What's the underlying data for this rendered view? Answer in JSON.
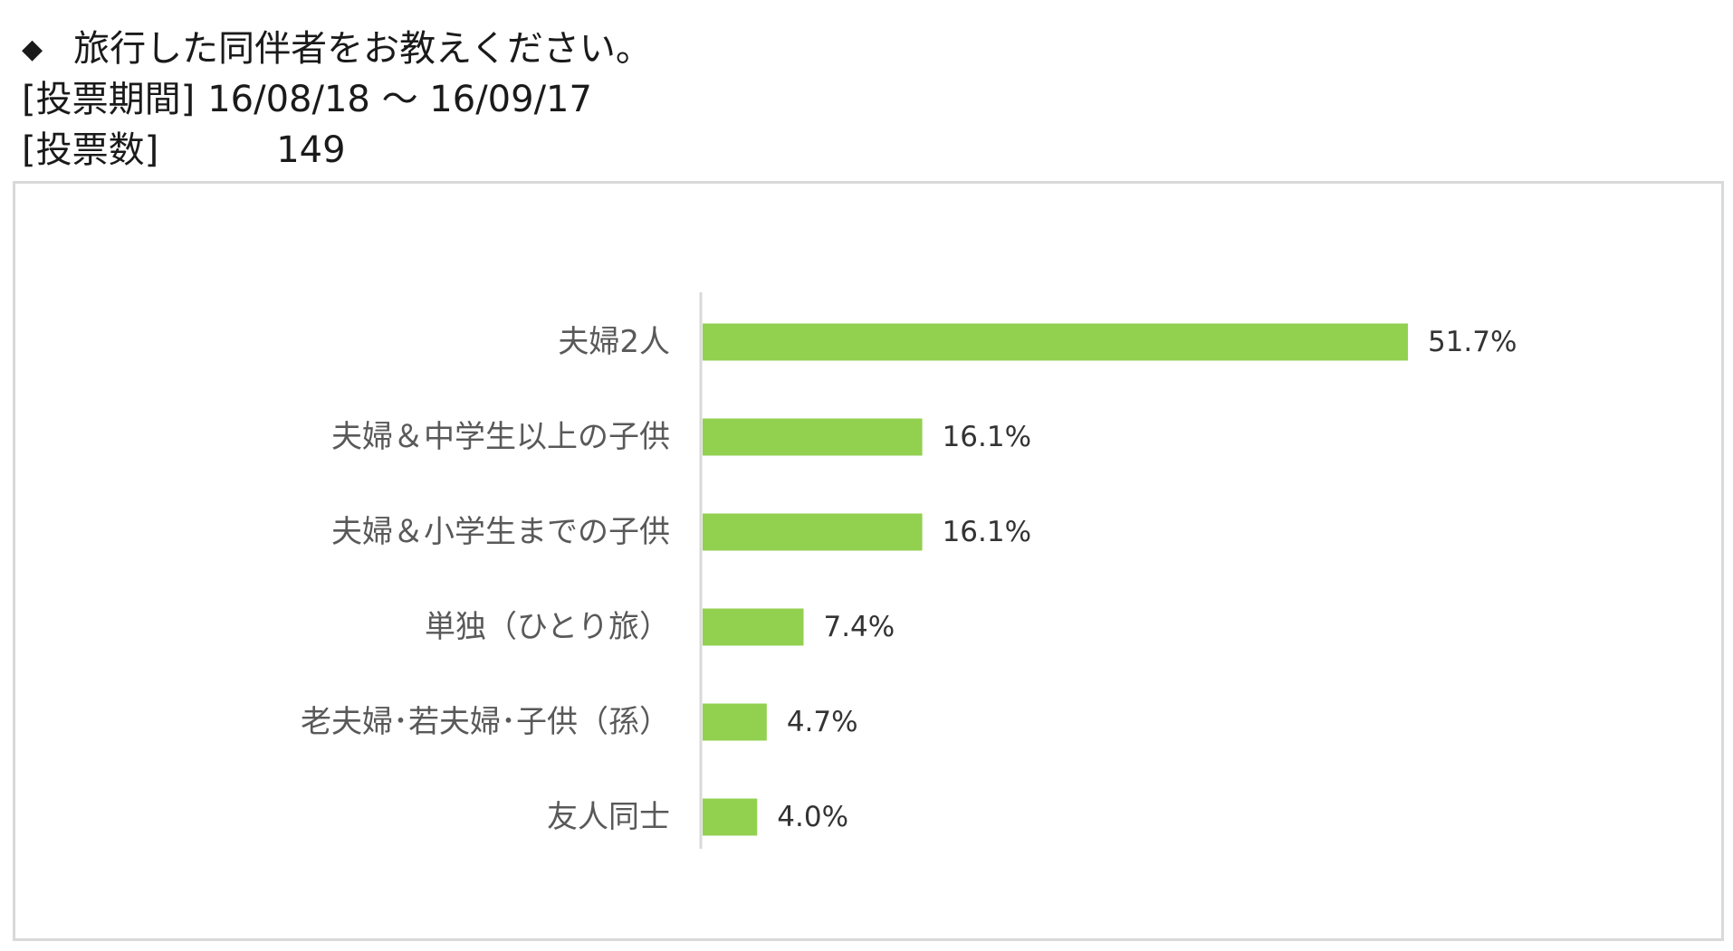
{
  "header": {
    "bullet": "◆",
    "question": "旅行した同伴者をお教えください。",
    "period_label": "[投票期間]",
    "period_value": "16/08/18 ～ 16/09/17",
    "votes_label": "[投票数]",
    "votes_value": "149"
  },
  "colors": {
    "bar": "#92d050",
    "axis": "#d9d9d9",
    "frame": "#d9d9d9"
  },
  "chart_data": {
    "type": "bar",
    "orientation": "horizontal",
    "categories": [
      "夫婦2人",
      "夫婦＆中学生以上の子供",
      "夫婦＆小学生までの子供",
      "単独（ひとり旅）",
      "老夫婦･若夫婦･子供（孫）",
      "友人同士"
    ],
    "values": [
      51.7,
      16.1,
      16.1,
      7.4,
      4.7,
      4.0
    ],
    "value_labels": [
      "51.7%",
      "16.1%",
      "16.1%",
      "7.4%",
      "4.7%",
      "4.0%"
    ],
    "xlim": [
      0,
      60
    ],
    "grid": false,
    "legend": "none"
  }
}
